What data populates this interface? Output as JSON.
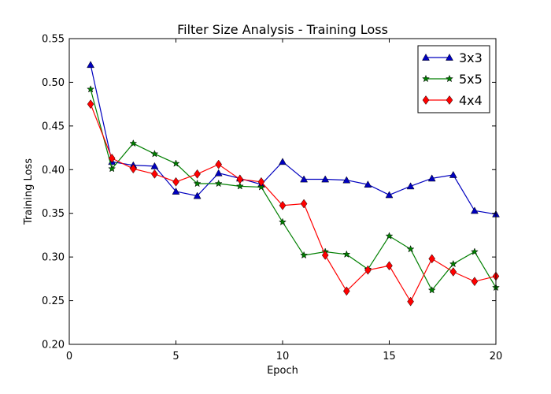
{
  "chart_data": {
    "type": "line",
    "title": "Filter Size Analysis - Training Loss",
    "xlabel": "Epoch",
    "ylabel": "Training Loss",
    "xlim": [
      0,
      20
    ],
    "ylim": [
      0.2,
      0.55
    ],
    "xticks": [
      0,
      5,
      10,
      15,
      20
    ],
    "yticks": [
      0.2,
      0.25,
      0.3,
      0.35,
      0.4,
      0.45,
      0.5,
      0.55
    ],
    "xtick_labels": [
      "0",
      "5",
      "10",
      "15",
      "20"
    ],
    "ytick_labels": [
      "0.20",
      "0.25",
      "0.30",
      "0.35",
      "0.40",
      "0.45",
      "0.50",
      "0.55"
    ],
    "grid": false,
    "legend_position": "top-right",
    "x": [
      1,
      2,
      3,
      4,
      5,
      6,
      7,
      8,
      9,
      10,
      11,
      12,
      13,
      14,
      15,
      16,
      17,
      18,
      19,
      20
    ],
    "series": [
      {
        "name": "3x3",
        "color": "#0000bf",
        "marker": "triangle",
        "values": [
          0.52,
          0.409,
          0.405,
          0.404,
          0.375,
          0.37,
          0.396,
          0.39,
          0.383,
          0.409,
          0.389,
          0.389,
          0.388,
          0.383,
          0.371,
          0.381,
          0.39,
          0.394,
          0.353,
          0.349
        ]
      },
      {
        "name": "5x5",
        "color": "#007f00",
        "marker": "star",
        "values": [
          0.492,
          0.401,
          0.43,
          0.418,
          0.407,
          0.384,
          0.384,
          0.381,
          0.38,
          0.34,
          0.302,
          0.306,
          0.303,
          0.286,
          0.324,
          0.309,
          0.262,
          0.292,
          0.306,
          0.265
        ]
      },
      {
        "name": "4x4",
        "color": "#ff0000",
        "marker": "diamond",
        "values": [
          0.475,
          0.413,
          0.401,
          0.395,
          0.386,
          0.395,
          0.406,
          0.389,
          0.386,
          0.359,
          0.361,
          0.302,
          0.261,
          0.285,
          0.29,
          0.249,
          0.298,
          0.283,
          0.272,
          0.278
        ]
      }
    ]
  }
}
